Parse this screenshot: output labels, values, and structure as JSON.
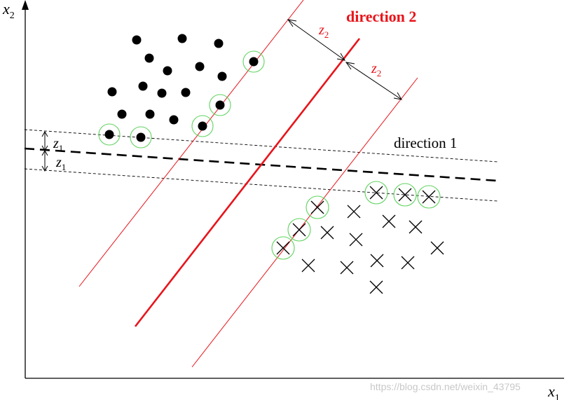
{
  "labels": {
    "x_axis": "x",
    "x_axis_sub": "1",
    "y_axis": "x",
    "y_axis_sub": "2",
    "direction1": "direction 1",
    "direction2": "direction 2",
    "z1": "z",
    "z1_sub": "1",
    "z2": "z",
    "z2_sub": "2"
  },
  "watermark": "https://blog.csdn.net/weixin_43795",
  "colors": {
    "axis": "#000000",
    "red": "#e8141b",
    "highlight": "#5fd35f",
    "points": "#000000"
  },
  "legend_marks": {
    "dot": "filled-circle",
    "cross": "x-mark"
  }
}
